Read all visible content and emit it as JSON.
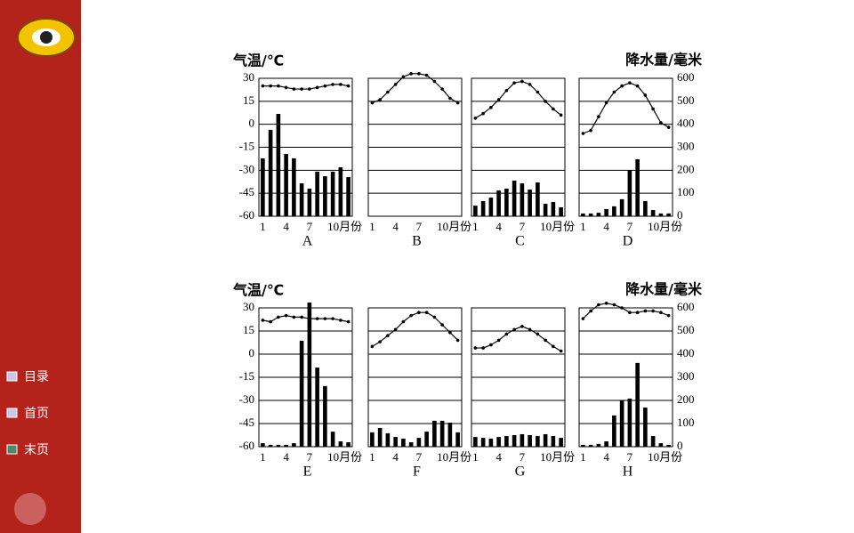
{
  "chart_data": [
    {
      "type": "climate",
      "title": "A",
      "ylabel": "气温/℃",
      "categories": [
        "1",
        null,
        null,
        "4",
        null,
        null,
        "7",
        null,
        null,
        "10月份",
        null,
        null
      ],
      "ylim": [
        -60,
        30
      ],
      "yticks": [
        -60,
        -45,
        -30,
        -15,
        0,
        15,
        30
      ],
      "y2lim": [
        0,
        600
      ],
      "grid": true,
      "series": [
        {
          "values": [
            25,
            25,
            25,
            24,
            23,
            23,
            23,
            24,
            25,
            26,
            26,
            25
          ],
          "color": "#000000"
        },
        {
          "values": [
            252,
            376,
            445,
            271,
            252,
            143,
            120,
            194,
            174,
            194,
            213,
            170
          ],
          "axis": "y2",
          "color": "#000000"
        }
      ]
    },
    {
      "type": "climate",
      "title": "B",
      "categories": [
        "1",
        null,
        null,
        "4",
        null,
        null,
        "7",
        null,
        null,
        "10月份",
        null,
        null
      ],
      "ylim": [
        -60,
        30
      ],
      "yticks": [
        -60,
        -45,
        -30,
        -15,
        0,
        15,
        30
      ],
      "y2lim": [
        0,
        600
      ],
      "grid": true,
      "series": [
        {
          "values": [
            14,
            16,
            21,
            26,
            31,
            33,
            33,
            32,
            28,
            23,
            17,
            14
          ],
          "color": "#000000"
        }
      ]
    },
    {
      "type": "climate",
      "title": "C",
      "categories": [
        "1",
        null,
        null,
        "4",
        null,
        null,
        "7",
        null,
        null,
        "10月份",
        null,
        null
      ],
      "ylim": [
        -60,
        30
      ],
      "yticks": [
        -60,
        -45,
        -30,
        -15,
        0,
        15,
        30
      ],
      "y2lim": [
        0,
        600
      ],
      "grid": true,
      "series": [
        {
          "values": [
            4,
            7,
            11,
            16,
            22,
            27,
            28,
            26,
            21,
            15,
            10,
            6
          ],
          "color": "#000000"
        },
        {
          "values": [
            46,
            66,
            81,
            112,
            120,
            155,
            143,
            116,
            147,
            54,
            62,
            39
          ],
          "axis": "y2",
          "color": "#000000"
        }
      ]
    },
    {
      "type": "climate",
      "title": "D",
      "y2label": "降水量/毫米",
      "categories": [
        "1",
        null,
        null,
        "4",
        null,
        null,
        "7",
        null,
        null,
        "10月份",
        null,
        null
      ],
      "ylim": [
        -60,
        30
      ],
      "yticks": [
        -60,
        -45,
        -30,
        -15,
        0,
        15,
        30
      ],
      "y2lim": [
        0,
        600
      ],
      "y2ticks": [
        0,
        100,
        200,
        300,
        400,
        500,
        600
      ],
      "grid": true,
      "series": [
        {
          "values": [
            -6,
            -4,
            5,
            14,
            21,
            25,
            27,
            25,
            19,
            10,
            1,
            -2
          ],
          "color": "#000000"
        },
        {
          "values": [
            12,
            12,
            15,
            31,
            43,
            74,
            201,
            248,
            66,
            27,
            12,
            12
          ],
          "axis": "y2",
          "color": "#000000"
        }
      ]
    },
    {
      "type": "climate",
      "title": "E",
      "ylabel": "气温/℃",
      "categories": [
        "1",
        null,
        null,
        "4",
        null,
        null,
        "7",
        null,
        null,
        "10月份",
        null,
        null
      ],
      "ylim": [
        -60,
        30
      ],
      "yticks": [
        -60,
        -45,
        -30,
        -15,
        0,
        15,
        30
      ],
      "y2lim": [
        0,
        600
      ],
      "grid": true,
      "series": [
        {
          "values": [
            22,
            21,
            24,
            25,
            24,
            24,
            23,
            23,
            23,
            23,
            22,
            21
          ],
          "color": "#000000"
        },
        {
          "values": [
            15,
            8,
            8,
            8,
            15,
            458,
            623,
            342,
            262,
            65,
            23,
            19
          ],
          "axis": "y2",
          "color": "#000000"
        }
      ]
    },
    {
      "type": "climate",
      "title": "F",
      "categories": [
        "1",
        null,
        null,
        "4",
        null,
        null,
        "7",
        null,
        null,
        "10月份",
        null,
        null
      ],
      "ylim": [
        -60,
        30
      ],
      "yticks": [
        -60,
        -45,
        -30,
        -15,
        0,
        15,
        30
      ],
      "y2lim": [
        0,
        600
      ],
      "grid": true,
      "series": [
        {
          "values": [
            5,
            8,
            12,
            16,
            21,
            25,
            27,
            27,
            24,
            19,
            14,
            9
          ],
          "color": "#000000"
        },
        {
          "values": [
            62,
            81,
            58,
            42,
            35,
            19,
            38,
            65,
            112,
            112,
            104,
            62
          ],
          "axis": "y2",
          "color": "#000000"
        }
      ]
    },
    {
      "type": "climate",
      "title": "G",
      "categories": [
        "1",
        null,
        null,
        "4",
        null,
        null,
        "7",
        null,
        null,
        "10月份",
        null,
        null
      ],
      "ylim": [
        -60,
        30
      ],
      "yticks": [
        -60,
        -45,
        -30,
        -15,
        0,
        15,
        30
      ],
      "y2lim": [
        0,
        600
      ],
      "grid": true,
      "series": [
        {
          "values": [
            4,
            4,
            6,
            9,
            13,
            16,
            18,
            16,
            13,
            9,
            5,
            2
          ],
          "color": "#000000"
        },
        {
          "values": [
            42,
            38,
            35,
            42,
            46,
            50,
            54,
            50,
            46,
            54,
            46,
            38
          ],
          "axis": "y2",
          "color": "#000000"
        }
      ]
    },
    {
      "type": "climate",
      "title": "H",
      "y2label": "降水量/毫米",
      "categories": [
        "1",
        null,
        null,
        "4",
        null,
        null,
        "7",
        null,
        null,
        "10月份",
        null,
        null
      ],
      "ylim": [
        -60,
        30
      ],
      "yticks": [
        -60,
        -45,
        -30,
        -15,
        0,
        15,
        30
      ],
      "y2lim": [
        0,
        600
      ],
      "y2ticks": [
        0,
        100,
        200,
        300,
        400,
        500,
        600
      ],
      "grid": true,
      "series": [
        {
          "values": [
            23,
            28,
            32,
            33,
            32,
            30,
            27,
            27,
            28,
            28,
            27,
            25
          ],
          "color": "#000000"
        },
        {
          "values": [
            8,
            8,
            12,
            23,
            135,
            200,
            208,
            362,
            169,
            46,
            15,
            8
          ],
          "axis": "y2",
          "color": "#000000"
        }
      ]
    }
  ],
  "nav": {
    "items": [
      "目录",
      "首页",
      "末页"
    ]
  }
}
